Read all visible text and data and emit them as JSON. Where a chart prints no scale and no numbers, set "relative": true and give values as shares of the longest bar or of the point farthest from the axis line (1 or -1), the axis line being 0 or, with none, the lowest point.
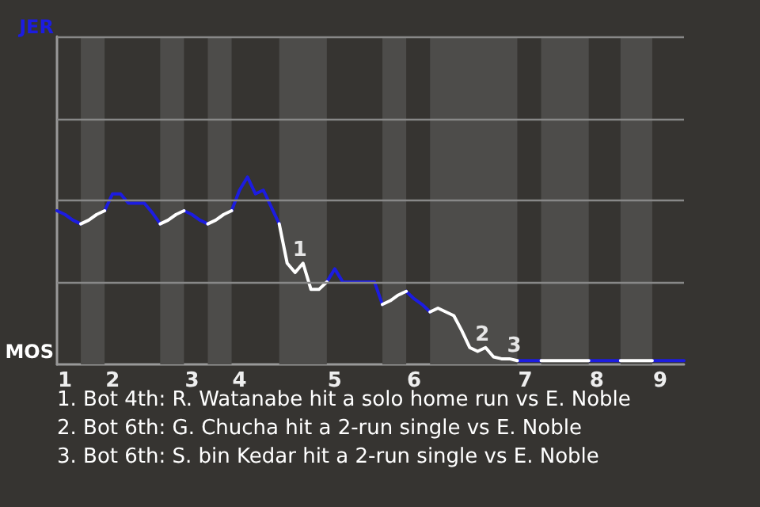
{
  "chart_data": {
    "type": "line",
    "relative": true,
    "categories": [
      null,
      "1",
      null,
      null,
      null,
      null,
      null,
      "2",
      null,
      null,
      null,
      null,
      null,
      null,
      null,
      null,
      null,
      "3",
      null,
      null,
      null,
      null,
      null,
      "4",
      null,
      null,
      null,
      null,
      null,
      null,
      null,
      null,
      null,
      null,
      null,
      "5",
      null,
      null,
      null,
      null,
      null,
      null,
      null,
      null,
      null,
      "6",
      null,
      null,
      null,
      null,
      null,
      null,
      null,
      null,
      null,
      null,
      null,
      null,
      null,
      "7",
      null,
      null,
      null,
      null,
      null,
      null,
      null,
      null,
      "8",
      null,
      null,
      null,
      null,
      null,
      null,
      null,
      "9",
      null,
      null,
      null
    ],
    "marker": "none",
    "line_style": "solid",
    "ref_lines": [
      {
        "axis": "y",
        "value": 0.4375,
        "color": "#888888",
        "line_style": "solid"
      },
      {
        "axis": "y",
        "value": 0.875,
        "color": "#888888",
        "line_style": "solid"
      },
      {
        "axis": "y",
        "value": 1.3125,
        "color": "#888888",
        "line_style": "solid"
      },
      {
        "axis": "y",
        "value": 1.75,
        "color": "#888888",
        "line_style": "solid"
      }
    ],
    "series": [
      {
        "color": "#1c1ce0",
        "values": [
          0.82,
          0.8,
          0.77,
          0.75,
          null,
          null,
          0.82,
          0.91,
          0.91,
          0.86,
          0.86,
          0.86,
          0.81,
          0.75,
          null,
          null,
          0.82,
          0.8,
          0.77,
          0.75,
          null,
          null,
          0.82,
          0.93,
          1,
          0.91,
          0.93,
          0.84,
          0.75,
          null,
          null,
          null,
          null,
          null,
          0.44,
          0.51,
          0.44,
          0.44,
          0.44,
          0.44,
          0.44,
          0.32,
          null,
          null,
          0.39,
          0.35,
          0.32,
          0.28,
          null,
          null,
          null,
          null,
          null,
          null,
          null,
          null,
          null,
          null,
          0.02,
          0.02,
          0.02,
          0.02,
          null,
          null,
          null,
          null,
          null,
          0.02,
          0.02,
          0.02,
          0.02,
          0.02,
          null,
          null,
          null,
          0.02,
          0.02,
          0.02,
          0.02,
          0.02
        ]
      },
      {
        "color": "#ffffff",
        "values": [
          null,
          null,
          null,
          0.75,
          0.77,
          0.8,
          0.82,
          null,
          null,
          null,
          null,
          null,
          null,
          0.75,
          0.77,
          0.8,
          0.82,
          null,
          null,
          0.75,
          0.77,
          0.8,
          0.82,
          null,
          null,
          null,
          null,
          null,
          0.75,
          0.54,
          0.49,
          0.54,
          0.4,
          0.4,
          0.44,
          null,
          null,
          null,
          null,
          null,
          null,
          0.32,
          0.34,
          0.37,
          0.39,
          null,
          null,
          0.28,
          0.3,
          0.28,
          0.26,
          0.18,
          0.09,
          0.07,
          0.09,
          0.04,
          0.03,
          0.03,
          0.02,
          null,
          null,
          0.02,
          0.02,
          0.02,
          0.02,
          0.02,
          0.02,
          0.02,
          null,
          null,
          null,
          0.02,
          0.02,
          0.02,
          0.02,
          0.02,
          null,
          null,
          null,
          null
        ]
      }
    ],
    "annotations": [
      "JER",
      "MOS",
      {
        "text": "1",
        "y": 0.54
      },
      {
        "text": "2",
        "y": 0.09
      },
      {
        "text": "3",
        "y": 0.03
      },
      "1. Bot 4th: R. Watanabe hit a solo home run vs E. Noble",
      "2. Bot 6th: G. Chucha hit a 2-run single vs E. Noble",
      "3. Bot 6th: S. bin Kedar hit a 2-run single vs E. Noble"
    ]
  }
}
